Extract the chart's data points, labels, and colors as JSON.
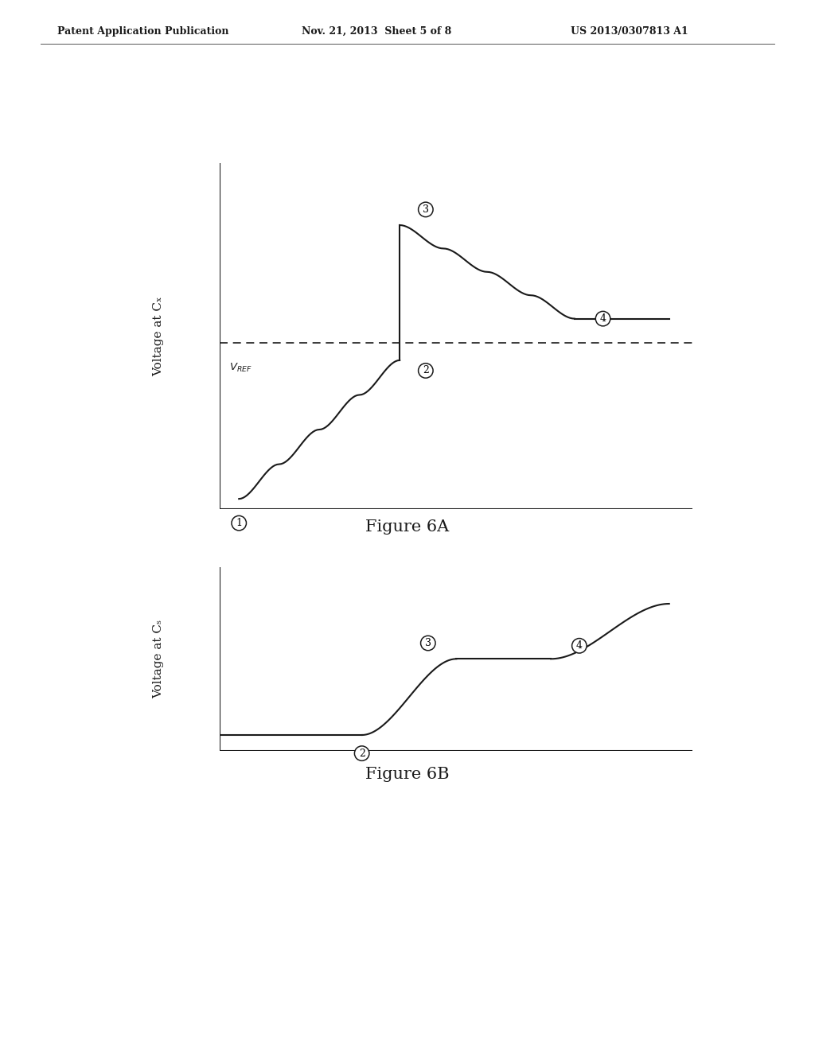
{
  "bg_color": "#ffffff",
  "line_color": "#1a1a1a",
  "header_left": "Patent Application Publication",
  "header_mid": "Nov. 21, 2013  Sheet 5 of 8",
  "header_right": "US 2013/0307813 A1",
  "fig6a_title": "Figure 6A",
  "fig6b_title": "Figure 6B",
  "fig6a_ylabel": "Voltage at Cₓ",
  "fig6b_ylabel": "Voltage at Cₛ",
  "vref_label": "VₛREF"
}
